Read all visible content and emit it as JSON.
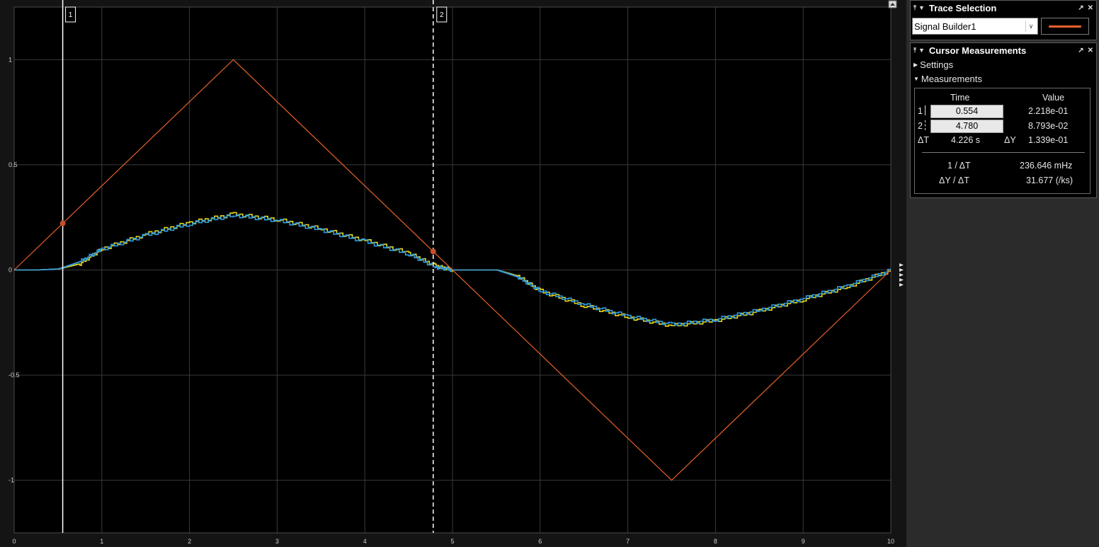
{
  "plot": {
    "background": "#000000",
    "x_ticks": [
      "0",
      "1",
      "2",
      "3",
      "4",
      "5",
      "6",
      "7",
      "8",
      "9",
      "10"
    ],
    "y_ticks": [
      "1",
      "0.5",
      "0",
      "-0.5",
      "-1"
    ],
    "cursor_1_label": "1",
    "cursor_2_label": "2",
    "cursor_1_time": 0.554,
    "cursor_2_time": 4.78,
    "cursor_1_value": 0.2218,
    "cursor_2_value": 0.08793,
    "side_arrows_icon": "triangle-right-icons"
  },
  "chart_data": {
    "type": "line",
    "xlim": [
      0,
      10
    ],
    "ylim": [
      -1.25,
      1.25
    ],
    "grid": true,
    "series": [
      {
        "name": "Signal Builder1",
        "color": "#e8612b",
        "x": [
          0,
          2.5,
          7.5,
          10
        ],
        "y": [
          0,
          1,
          -1,
          0
        ]
      },
      {
        "color": "#e6d81a",
        "x": [
          0,
          0.25,
          0.5,
          0.75,
          1.0,
          1.5,
          2.0,
          2.5,
          3.0,
          3.5,
          4.0,
          4.5,
          4.8,
          5.0,
          5.25,
          5.5,
          5.75,
          6.0,
          6.5,
          7.0,
          7.5,
          8.0,
          8.5,
          9.0,
          9.5,
          10
        ],
        "y": [
          0,
          0,
          0.005,
          0.03,
          0.1,
          0.17,
          0.225,
          0.265,
          0.24,
          0.195,
          0.14,
          0.08,
          0.02,
          0,
          0,
          0,
          -0.03,
          -0.1,
          -0.17,
          -0.225,
          -0.265,
          -0.24,
          -0.195,
          -0.14,
          -0.08,
          0
        ]
      },
      {
        "color": "#2f9be0",
        "x": [
          0,
          0.25,
          0.5,
          0.75,
          1.0,
          1.5,
          2.0,
          2.5,
          3.0,
          3.5,
          4.0,
          4.5,
          4.8,
          5.0,
          5.25,
          5.5,
          5.75,
          6.0,
          6.5,
          7.0,
          7.5,
          8.0,
          8.5,
          9.0,
          9.5,
          10
        ],
        "y": [
          0,
          0,
          0.005,
          0.04,
          0.1,
          0.165,
          0.22,
          0.26,
          0.235,
          0.19,
          0.135,
          0.075,
          0.015,
          0,
          0,
          0,
          -0.035,
          -0.1,
          -0.165,
          -0.22,
          -0.26,
          -0.235,
          -0.19,
          -0.135,
          -0.075,
          0
        ]
      }
    ]
  },
  "trace_selection": {
    "title": "Trace Selection",
    "selected": "Signal Builder1",
    "color": "#e8612b"
  },
  "cursor_measurements": {
    "title": "Cursor Measurements",
    "settings_label": "Settings",
    "measurements_label": "Measurements",
    "col_time": "Time",
    "col_value": "Value",
    "row1": {
      "idx": "1",
      "time": "0.554",
      "value": "2.218e-01"
    },
    "row2": {
      "idx": "2",
      "time": "4.780",
      "value": "8.793e-02"
    },
    "dt_label": "ΔT",
    "dt_value": "4.226 s",
    "dy_label": "ΔY",
    "dy_value": "1.339e-01",
    "inv_dt_label": "1 / ΔT",
    "inv_dt_value": "236.646 mHz",
    "dydt_label": "ΔY / ΔT",
    "dydt_value": "31.677 (/ks)"
  }
}
